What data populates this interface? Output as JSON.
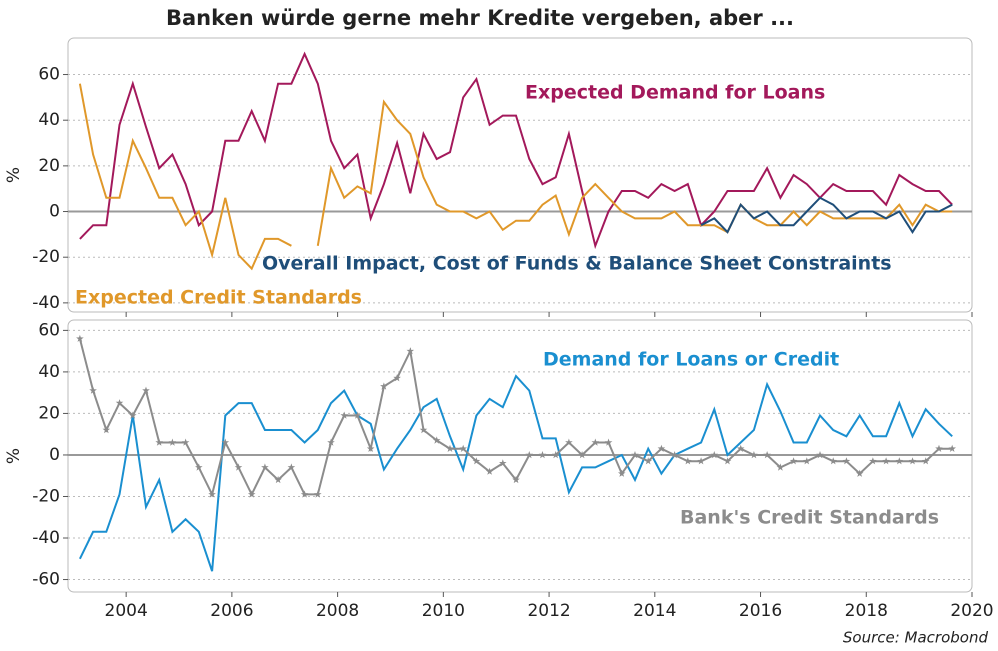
{
  "chart_data": [
    {
      "type": "line",
      "title": "Banken würde gerne mehr Kredite vergeben, aber ...",
      "y_label": "%",
      "xlim": [
        2002.9,
        2020
      ],
      "xticks": [
        2004,
        2006,
        2008,
        2010,
        2012,
        2014,
        2016,
        2018,
        2020
      ],
      "ylim": [
        -44,
        76
      ],
      "yticks": [
        -40,
        -20,
        0,
        20,
        40,
        60
      ],
      "grid": true,
      "x": [
        2003.125,
        2003.375,
        2003.625,
        2003.875,
        2004.125,
        2004.375,
        2004.625,
        2004.875,
        2005.125,
        2005.375,
        2005.625,
        2005.875,
        2006.125,
        2006.375,
        2006.625,
        2006.875,
        2007.125,
        2007.375,
        2007.625,
        2007.875,
        2008.125,
        2008.375,
        2008.625,
        2008.875,
        2009.125,
        2009.375,
        2009.625,
        2009.875,
        2010.125,
        2010.375,
        2010.625,
        2010.875,
        2011.125,
        2011.375,
        2011.625,
        2011.875,
        2012.125,
        2012.375,
        2012.625,
        2012.875,
        2013.125,
        2013.375,
        2013.625,
        2013.875,
        2014.125,
        2014.375,
        2014.625,
        2014.875,
        2015.125,
        2015.375,
        2015.625,
        2015.875,
        2016.125,
        2016.375,
        2016.625,
        2016.875,
        2017.125,
        2017.375,
        2017.625,
        2017.875,
        2018.125,
        2018.375,
        2018.625,
        2018.875,
        2019.125,
        2019.375,
        2019.625
      ],
      "series": [
        {
          "name": "Expected Demand for Loans",
          "color": "#a3195b",
          "values": [
            -12,
            -6,
            -6,
            38,
            56,
            37,
            19,
            25,
            12,
            -6,
            0,
            31,
            31,
            44,
            31,
            56,
            56,
            69,
            56,
            31,
            19,
            25,
            -3,
            12,
            30,
            8,
            34,
            23,
            26,
            50,
            58,
            38,
            42,
            42,
            23,
            12,
            15,
            34,
            9,
            -15,
            0,
            9,
            9,
            6,
            12,
            9,
            12,
            -6,
            0,
            9,
            9,
            9,
            19,
            6,
            16,
            12,
            6,
            12,
            9,
            9,
            9,
            3,
            16,
            12,
            9,
            9,
            3
          ]
        },
        {
          "name": "Expected Credit Standards",
          "color": "#e0982a",
          "values": [
            56,
            25,
            6,
            6,
            31,
            19,
            6,
            6,
            -6,
            0,
            -19,
            6,
            -19,
            -25,
            -12,
            -12,
            -15,
            null,
            -15,
            19,
            6,
            11,
            8,
            48,
            40,
            34,
            15,
            3,
            0,
            0,
            -3,
            0,
            -8,
            -4,
            -4,
            3,
            7,
            -10,
            6,
            12,
            6,
            0,
            -3,
            -3,
            -3,
            0,
            -6,
            -6,
            -6,
            -9,
            3,
            -3,
            -6,
            -6,
            0,
            -6,
            0,
            -3,
            -3,
            -3,
            -3,
            -3,
            3,
            -6,
            3,
            0,
            0
          ]
        },
        {
          "name": "Overall Impact, Cost of Funds & Balance Sheet Constraints",
          "color": "#1f4e79",
          "values": [
            null,
            null,
            null,
            null,
            null,
            null,
            null,
            null,
            null,
            null,
            null,
            null,
            null,
            null,
            null,
            null,
            null,
            null,
            null,
            null,
            null,
            null,
            null,
            null,
            null,
            null,
            null,
            null,
            null,
            null,
            null,
            null,
            null,
            null,
            null,
            null,
            null,
            null,
            null,
            null,
            null,
            null,
            null,
            null,
            null,
            null,
            null,
            -6,
            -3,
            -9,
            3,
            -3,
            0,
            -6,
            -6,
            0,
            6,
            3,
            -3,
            0,
            0,
            -3,
            0,
            -9,
            0,
            0,
            3
          ]
        }
      ]
    },
    {
      "type": "line",
      "y_label": "%",
      "source": "Source: Macrobond",
      "xlim": [
        2002.9,
        2020
      ],
      "xticks": [
        2004,
        2006,
        2008,
        2010,
        2012,
        2014,
        2016,
        2018,
        2020
      ],
      "ylim": [
        -66,
        65
      ],
      "yticks": [
        -60,
        -40,
        -20,
        0,
        20,
        40,
        60
      ],
      "grid": true,
      "x": [
        2003.125,
        2003.375,
        2003.625,
        2003.875,
        2004.125,
        2004.375,
        2004.625,
        2004.875,
        2005.125,
        2005.375,
        2005.625,
        2005.875,
        2006.125,
        2006.375,
        2006.625,
        2006.875,
        2007.125,
        2007.375,
        2007.625,
        2007.875,
        2008.125,
        2008.375,
        2008.625,
        2008.875,
        2009.125,
        2009.375,
        2009.625,
        2009.875,
        2010.125,
        2010.375,
        2010.625,
        2010.875,
        2011.125,
        2011.375,
        2011.625,
        2011.875,
        2012.125,
        2012.375,
        2012.625,
        2012.875,
        2013.125,
        2013.375,
        2013.625,
        2013.875,
        2014.125,
        2014.375,
        2014.625,
        2014.875,
        2015.125,
        2015.375,
        2015.625,
        2015.875,
        2016.125,
        2016.375,
        2016.625,
        2016.875,
        2017.125,
        2017.375,
        2017.625,
        2017.875,
        2018.125,
        2018.375,
        2018.625,
        2018.875,
        2019.125,
        2019.375,
        2019.625
      ],
      "series": [
        {
          "name": "Demand for Loans or Credit",
          "color": "#1a8fd0",
          "values": [
            -50,
            -37,
            -37,
            -19,
            19,
            -25,
            -12,
            -37,
            -31,
            -37,
            -56,
            19,
            25,
            25,
            12,
            12,
            12,
            6,
            12,
            25,
            31,
            19,
            15,
            -7,
            3,
            12,
            23,
            27,
            9,
            -7,
            19,
            27,
            23,
            38,
            31,
            8,
            8,
            -18,
            -6,
            -6,
            -3,
            0,
            -12,
            3,
            -9,
            0,
            3,
            6,
            22,
            0,
            6,
            12,
            34,
            21,
            6,
            6,
            19,
            12,
            9,
            19,
            9,
            9,
            25,
            9,
            22,
            15,
            9
          ]
        },
        {
          "name": "Bank's Credit Standards",
          "color": "#8c8c8c",
          "marker": "star",
          "values": [
            56,
            31,
            12,
            25,
            19,
            31,
            6,
            6,
            6,
            -6,
            -19,
            6,
            -6,
            -19,
            -6,
            -12,
            -6,
            -19,
            -19,
            6,
            19,
            19,
            3,
            33,
            37,
            50,
            12,
            7,
            3,
            3,
            -3,
            -8,
            -4,
            -12,
            0,
            0,
            0,
            6,
            0,
            6,
            6,
            -9,
            0,
            -3,
            3,
            0,
            -3,
            -3,
            0,
            -3,
            3,
            0,
            0,
            -6,
            -3,
            -3,
            0,
            -3,
            -3,
            -9,
            -3,
            -3,
            -3,
            -3,
            -3,
            3,
            3
          ]
        }
      ]
    }
  ]
}
